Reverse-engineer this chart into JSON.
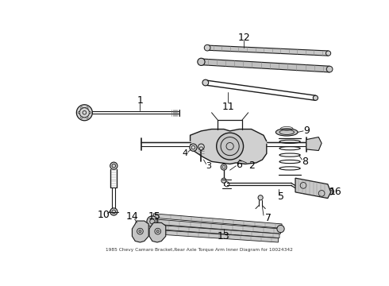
{
  "title": "1985 Chevy Camaro Bracket,Rear Axle Torque Arm Inner Diagram for 10024342",
  "bg_color": "#ffffff",
  "line_color": "#1a1a1a",
  "label_color": "#000000",
  "label_fontsize": 8,
  "fig_w": 4.9,
  "fig_h": 3.6,
  "dpi": 100,
  "xlim": [
    0,
    490
  ],
  "ylim": [
    0,
    360
  ]
}
